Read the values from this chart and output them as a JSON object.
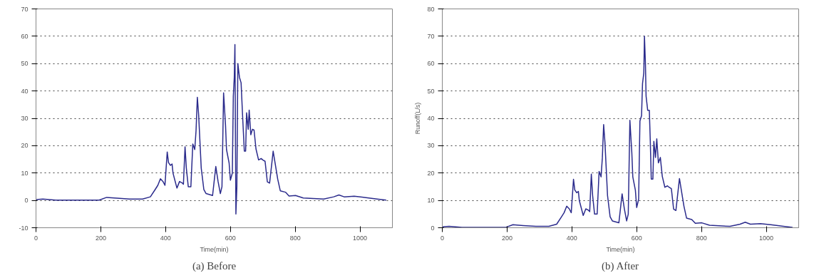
{
  "chart_data": [
    {
      "type": "line",
      "title": "(a) Before",
      "xlabel": "Time(min)",
      "xlim": [
        0,
        1100
      ],
      "xticks": [
        0,
        200,
        400,
        600,
        800,
        1000
      ],
      "ylim": [
        -10,
        70
      ],
      "yticks": [
        -10,
        0,
        10,
        20,
        30,
        40,
        50,
        60,
        70
      ],
      "grid": "y",
      "marker": "none",
      "line_style": "solid",
      "series": [
        {
          "color": "#2b2b8c",
          "x": [
            0,
            21,
            61,
            195,
            218,
            250,
            289,
            329,
            353,
            368,
            376,
            384,
            392,
            398,
            405,
            409,
            415,
            420,
            423,
            435,
            443,
            451,
            455,
            460,
            464,
            470,
            478,
            484,
            490,
            494,
            498,
            502,
            510,
            518,
            525,
            545,
            555,
            562,
            569,
            574,
            579,
            585,
            588,
            596,
            600,
            606,
            609,
            612,
            614,
            617,
            620,
            623,
            628,
            633,
            638,
            643,
            647,
            650,
            655,
            658,
            663,
            668,
            673,
            679,
            687,
            695,
            700,
            707,
            714,
            721,
            732,
            738,
            746,
            754,
            770,
            781,
            801,
            825,
            888,
            919,
            935,
            951,
            982,
            1014,
            1053,
            1081
          ],
          "values": [
            0.3,
            0.5,
            0.1,
            0.1,
            1.1,
            0.8,
            0.5,
            0.5,
            1.3,
            4,
            5.5,
            7.9,
            6.9,
            5.5,
            17.7,
            13.8,
            12.8,
            13.3,
            9.9,
            4.5,
            6.9,
            6.4,
            5.9,
            19.6,
            11.8,
            5,
            5,
            20.6,
            18.6,
            25.5,
            37.7,
            31.3,
            11.8,
            4,
            2.5,
            1.8,
            12.4,
            6.9,
            2.5,
            5,
            39.3,
            27.4,
            18.6,
            13.7,
            7.4,
            10,
            38,
            45,
            57,
            -5,
            5,
            50,
            45,
            43,
            30,
            18,
            18,
            32,
            26,
            33,
            24,
            26,
            25.7,
            18.8,
            14.8,
            15.3,
            14.8,
            14.3,
            6.8,
            6.3,
            18,
            13.6,
            7.8,
            3.5,
            3,
            1.6,
            1.8,
            0.9,
            0.5,
            1.3,
            2,
            1.3,
            1.5,
            1.1,
            0.5,
            0.1
          ]
        }
      ]
    },
    {
      "type": "line",
      "title": "(b) After",
      "xlabel": "Time(min)",
      "ylabel": "Runoff(L/s)",
      "xlim": [
        0,
        1100
      ],
      "xticks": [
        0,
        200,
        400,
        600,
        800,
        1000
      ],
      "ylim": [
        0,
        80
      ],
      "yticks": [
        0,
        10,
        20,
        30,
        40,
        50,
        60,
        70,
        80
      ],
      "grid": "y",
      "marker": "none",
      "line_style": "solid",
      "series": [
        {
          "color": "#2b2b8c",
          "x": [
            0,
            21,
            61,
            195,
            218,
            250,
            289,
            329,
            353,
            368,
            376,
            384,
            392,
            398,
            405,
            409,
            415,
            420,
            423,
            435,
            443,
            451,
            455,
            460,
            464,
            470,
            478,
            484,
            490,
            494,
            498,
            502,
            510,
            518,
            525,
            545,
            555,
            562,
            569,
            574,
            579,
            585,
            588,
            596,
            600,
            606,
            610,
            615,
            618,
            622,
            624,
            627,
            629,
            634,
            639,
            642,
            645,
            650,
            653,
            658,
            662,
            667,
            673,
            679,
            687,
            695,
            700,
            707,
            714,
            721,
            732,
            738,
            746,
            754,
            770,
            781,
            801,
            825,
            888,
            919,
            935,
            951,
            982,
            1014,
            1053,
            1081
          ],
          "values": [
            0.3,
            0.5,
            0.1,
            0.1,
            1.1,
            0.8,
            0.5,
            0.5,
            1.3,
            4,
            5.5,
            7.9,
            6.9,
            5.5,
            17.7,
            13.8,
            12.8,
            13.3,
            9.9,
            4.5,
            6.9,
            6.4,
            5.9,
            19.6,
            11.8,
            5,
            5,
            20.6,
            18.6,
            25.5,
            37.7,
            31.3,
            11.8,
            4,
            2.5,
            1.8,
            12.4,
            6.9,
            2.5,
            5,
            39.3,
            27.4,
            18.6,
            13.7,
            7.4,
            10.4,
            39,
            41,
            52.7,
            56.6,
            70,
            59.8,
            48.1,
            42.9,
            42.9,
            31.6,
            17.8,
            17.8,
            31.6,
            25.7,
            32.5,
            23.7,
            25.7,
            18.8,
            14.8,
            15.3,
            14.8,
            14.3,
            6.8,
            6.3,
            18,
            13.6,
            7.8,
            3.5,
            3,
            1.6,
            1.8,
            0.9,
            0.5,
            1.3,
            2,
            1.3,
            1.5,
            1.1,
            0.5,
            0.1
          ]
        }
      ]
    }
  ]
}
